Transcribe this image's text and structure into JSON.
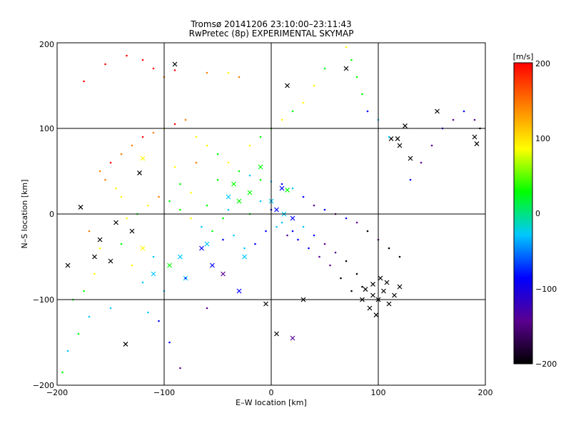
{
  "chart_data": {
    "type": "scatter",
    "title": "Tromsø 20141206 23:10:00–23:11:43",
    "subtitle": "RwPretec (8p) EXPERIMENTAL SKYMAP",
    "xlabel": "E–W location [km]",
    "ylabel": "N–S location [km]",
    "xlim": [
      -200,
      200
    ],
    "ylim": [
      -200,
      200
    ],
    "x_ticks": [
      -200,
      -100,
      0,
      100,
      200
    ],
    "y_ticks": [
      -200,
      -100,
      0,
      100,
      200
    ],
    "x_tick_labels": [
      "−200",
      "−100",
      "0",
      "100",
      "200"
    ],
    "y_tick_labels": [
      "−200",
      "−100",
      "0",
      "100",
      "200"
    ],
    "grid": true,
    "colorbar": {
      "label": "[m/s]",
      "range": [
        -200,
        200
      ],
      "ticks": [
        -200,
        -100,
        0,
        100,
        200
      ],
      "tick_labels": [
        "−200",
        "−100",
        "0",
        "100",
        "200"
      ],
      "colors": [
        "#000000",
        "#5a0090",
        "#0000ff",
        "#00c8ff",
        "#00ff00",
        "#ffff00",
        "#ff8000",
        "#ff0000"
      ]
    },
    "series": [
      {
        "marker": "x",
        "points": [
          [
            -123,
            48
          ],
          [
            -178,
            8
          ],
          [
            -120,
            65
          ],
          [
            -160,
            -30
          ],
          [
            -150,
            -55
          ],
          [
            -136,
            -152
          ],
          [
            -80,
            -75
          ],
          [
            -55,
            -60
          ],
          [
            -65,
            -40
          ],
          [
            -30,
            15
          ],
          [
            -35,
            35
          ],
          [
            -20,
            25
          ],
          [
            -10,
            55
          ],
          [
            10,
            30
          ],
          [
            15,
            28
          ],
          [
            0,
            15
          ],
          [
            5,
            5
          ],
          [
            12,
            0
          ],
          [
            20,
            -5
          ],
          [
            -5,
            -105
          ],
          [
            5,
            -140
          ],
          [
            30,
            -100
          ],
          [
            20,
            -145
          ],
          [
            15,
            150
          ],
          [
            70,
            170
          ],
          [
            88,
            -88
          ],
          [
            95,
            -95
          ],
          [
            100,
            -100
          ],
          [
            105,
            -90
          ],
          [
            110,
            -105
          ],
          [
            92,
            -110
          ],
          [
            98,
            -118
          ],
          [
            115,
            -95
          ],
          [
            120,
            -85
          ],
          [
            108,
            -80
          ],
          [
            102,
            -75
          ],
          [
            95,
            -82
          ],
          [
            85,
            -100
          ],
          [
            130,
            65
          ],
          [
            120,
            80
          ],
          [
            112,
            88
          ],
          [
            118,
            88
          ],
          [
            125,
            103
          ],
          [
            155,
            120
          ],
          [
            190,
            90
          ],
          [
            192,
            82
          ],
          [
            -90,
            175
          ],
          [
            -95,
            -60
          ],
          [
            -85,
            -50
          ],
          [
            -110,
            -70
          ],
          [
            -120,
            -40
          ],
          [
            -60,
            -35
          ],
          [
            -45,
            -70
          ],
          [
            -30,
            -90
          ],
          [
            -40,
            20
          ],
          [
            -25,
            -50
          ],
          [
            -130,
            -20
          ],
          [
            -145,
            -10
          ],
          [
            -165,
            -50
          ],
          [
            -190,
            -60
          ]
        ]
      },
      {
        "marker": "dot",
        "points": [
          [
            -175,
            155
          ],
          [
            -155,
            175
          ],
          [
            -135,
            185
          ],
          [
            -120,
            180
          ],
          [
            -110,
            170
          ],
          [
            -100,
            160
          ],
          [
            -90,
            168
          ],
          [
            -60,
            165
          ],
          [
            -40,
            165
          ],
          [
            -30,
            160
          ],
          [
            -80,
            -75
          ],
          [
            -170,
            -20
          ],
          [
            -160,
            -40
          ],
          [
            -140,
            -35
          ],
          [
            -130,
            -60
          ],
          [
            -120,
            -80
          ],
          [
            -110,
            -50
          ],
          [
            -100,
            -90
          ],
          [
            -150,
            -110
          ],
          [
            -170,
            -120
          ],
          [
            -180,
            -140
          ],
          [
            -190,
            -160
          ],
          [
            -195,
            -185
          ],
          [
            -185,
            -100
          ],
          [
            -175,
            -90
          ],
          [
            -165,
            -70
          ],
          [
            -115,
            -115
          ],
          [
            -105,
            -125
          ],
          [
            -95,
            -150
          ],
          [
            -85,
            -180
          ],
          [
            -60,
            -110
          ],
          [
            -45,
            -5
          ],
          [
            -50,
            40
          ],
          [
            -70,
            60
          ],
          [
            -90,
            55
          ],
          [
            -85,
            35
          ],
          [
            -75,
            25
          ],
          [
            -60,
            10
          ],
          [
            -40,
            5
          ],
          [
            -20,
            0
          ],
          [
            -10,
            15
          ],
          [
            0,
            5
          ],
          [
            10,
            -10
          ],
          [
            20,
            -20
          ],
          [
            30,
            -15
          ],
          [
            40,
            -25
          ],
          [
            50,
            -35
          ],
          [
            60,
            -45
          ],
          [
            70,
            -55
          ],
          [
            80,
            -70
          ],
          [
            85,
            -85
          ],
          [
            75,
            -90
          ],
          [
            65,
            -75
          ],
          [
            55,
            -60
          ],
          [
            45,
            -50
          ],
          [
            35,
            -40
          ],
          [
            25,
            -30
          ],
          [
            15,
            -25
          ],
          [
            5,
            -15
          ],
          [
            -5,
            -20
          ],
          [
            -15,
            -35
          ],
          [
            -25,
            -40
          ],
          [
            -35,
            -25
          ],
          [
            -45,
            -30
          ],
          [
            -55,
            -20
          ],
          [
            -65,
            -15
          ],
          [
            -75,
            -5
          ],
          [
            -85,
            5
          ],
          [
            -95,
            15
          ],
          [
            -105,
            20
          ],
          [
            -115,
            10
          ],
          [
            -125,
            0
          ],
          [
            -135,
            -5
          ],
          [
            -140,
            20
          ],
          [
            -145,
            30
          ],
          [
            -155,
            40
          ],
          [
            -160,
            50
          ],
          [
            -150,
            60
          ],
          [
            -140,
            70
          ],
          [
            -130,
            80
          ],
          [
            -120,
            90
          ],
          [
            -110,
            95
          ],
          [
            -100,
            100
          ],
          [
            -90,
            105
          ],
          [
            -80,
            110
          ],
          [
            -70,
            90
          ],
          [
            -60,
            80
          ],
          [
            -50,
            70
          ],
          [
            -40,
            60
          ],
          [
            -30,
            50
          ],
          [
            -20,
            45
          ],
          [
            -10,
            40
          ],
          [
            0,
            38
          ],
          [
            10,
            35
          ],
          [
            20,
            30
          ],
          [
            30,
            20
          ],
          [
            40,
            10
          ],
          [
            50,
            5
          ],
          [
            60,
            0
          ],
          [
            70,
            -5
          ],
          [
            80,
            -10
          ],
          [
            90,
            -20
          ],
          [
            100,
            -30
          ],
          [
            110,
            -40
          ],
          [
            120,
            -50
          ],
          [
            130,
            40
          ],
          [
            140,
            60
          ],
          [
            150,
            80
          ],
          [
            160,
            100
          ],
          [
            170,
            110
          ],
          [
            180,
            120
          ],
          [
            190,
            110
          ],
          [
            195,
            100
          ],
          [
            110,
            90
          ],
          [
            100,
            110
          ],
          [
            90,
            120
          ],
          [
            85,
            140
          ],
          [
            80,
            160
          ],
          [
            75,
            180
          ],
          [
            70,
            195
          ],
          [
            50,
            170
          ],
          [
            40,
            150
          ],
          [
            30,
            130
          ],
          [
            20,
            120
          ],
          [
            10,
            110
          ],
          [
            0,
            100
          ],
          [
            -10,
            90
          ],
          [
            -20,
            80
          ]
        ]
      }
    ]
  }
}
